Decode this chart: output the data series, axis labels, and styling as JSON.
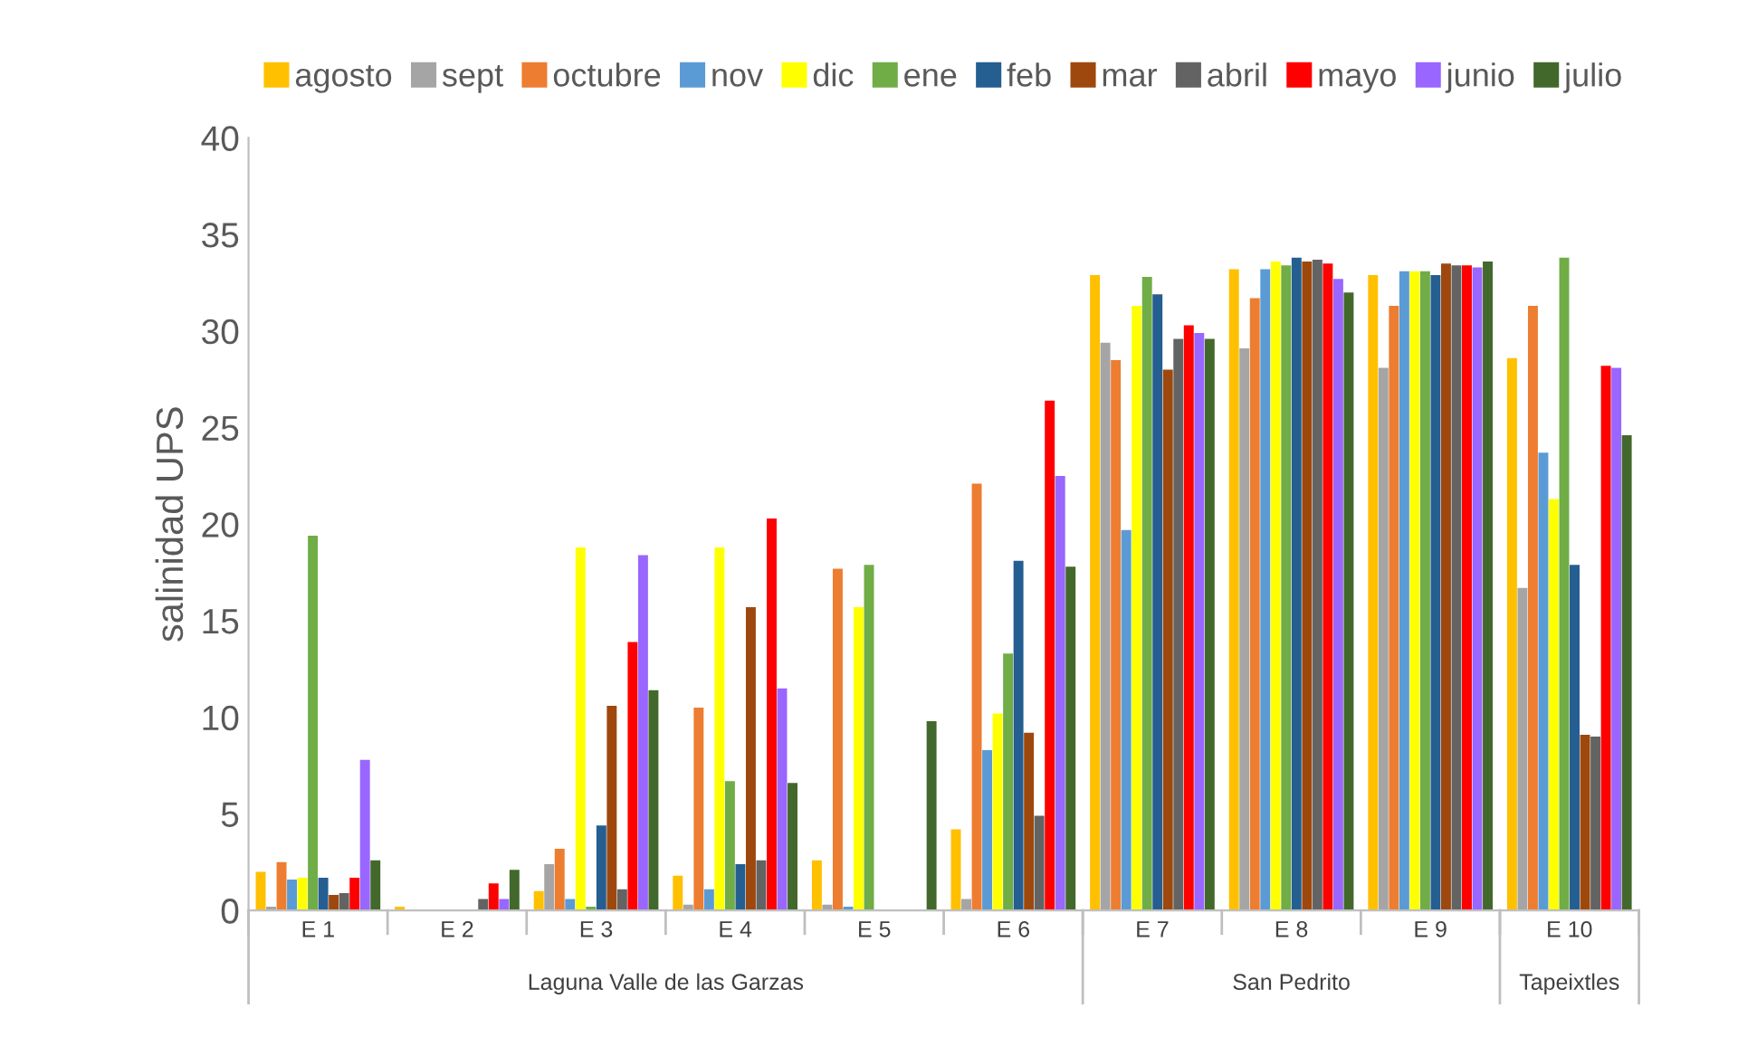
{
  "chart_data": {
    "type": "bar",
    "ylabel": "salinidad UPS",
    "categories": [
      "E 1",
      "E 2",
      "E 3",
      "E 4",
      "E 5",
      "E 6",
      "E 7",
      "E 8",
      "E 9",
      "E 10"
    ],
    "series": [
      {
        "name": "agosto",
        "color": "#ffc000",
        "values": [
          2.0,
          0.2,
          1.0,
          1.8,
          2.6,
          4.2,
          32.9,
          33.2,
          32.9,
          28.6
        ]
      },
      {
        "name": "sept",
        "color": "#a5a5a5",
        "values": [
          0.2,
          0,
          2.4,
          0.3,
          0.3,
          0.6,
          29.4,
          29.1,
          28.1,
          16.7
        ]
      },
      {
        "name": "octubre",
        "color": "#ed7d31",
        "values": [
          2.5,
          0,
          3.2,
          10.5,
          17.7,
          22.1,
          28.5,
          31.7,
          31.3,
          31.3
        ]
      },
      {
        "name": "nov",
        "color": "#5b9bd5",
        "values": [
          1.6,
          0,
          0.6,
          1.1,
          0.2,
          8.3,
          19.7,
          33.2,
          33.1,
          23.7
        ]
      },
      {
        "name": "dic",
        "color": "#ffff00",
        "values": [
          1.7,
          0,
          18.8,
          18.8,
          15.7,
          10.2,
          31.3,
          33.6,
          33.1,
          21.3
        ]
      },
      {
        "name": "ene",
        "color": "#70ad47",
        "values": [
          19.4,
          0,
          0.2,
          6.7,
          17.9,
          13.3,
          32.8,
          33.4,
          33.1,
          33.8
        ]
      },
      {
        "name": "feb",
        "color": "#255e91",
        "values": [
          1.7,
          0,
          4.4,
          2.4,
          0,
          18.1,
          31.9,
          33.8,
          32.9,
          17.9
        ]
      },
      {
        "name": "mar",
        "color": "#9e480e",
        "values": [
          0.8,
          0,
          10.6,
          15.7,
          0,
          9.2,
          28.0,
          33.6,
          33.5,
          9.1
        ]
      },
      {
        "name": "abril",
        "color": "#636363",
        "values": [
          0.9,
          0.6,
          1.1,
          2.6,
          0,
          4.9,
          29.6,
          33.7,
          33.4,
          9.0
        ]
      },
      {
        "name": "mayo",
        "color": "#ff0000",
        "values": [
          1.7,
          1.4,
          13.9,
          20.3,
          0,
          26.4,
          30.3,
          33.5,
          33.4,
          28.2
        ]
      },
      {
        "name": "junio",
        "color": "#9966ff",
        "values": [
          7.8,
          0.6,
          18.4,
          11.5,
          0,
          22.5,
          29.9,
          32.7,
          33.3,
          28.1
        ]
      },
      {
        "name": "julio",
        "color": "#43682b",
        "values": [
          2.6,
          2.1,
          11.4,
          6.6,
          9.8,
          17.8,
          29.6,
          32.0,
          33.6,
          24.6
        ]
      }
    ],
    "ylim": [
      0,
      40
    ],
    "yticks": [
      0,
      5,
      10,
      15,
      20,
      25,
      30,
      35,
      40
    ],
    "grid": false,
    "legend": "top",
    "annotations": [
      "Laguna Valle de las Garzas",
      "San Pedrito",
      "Tapeixtles"
    ]
  }
}
